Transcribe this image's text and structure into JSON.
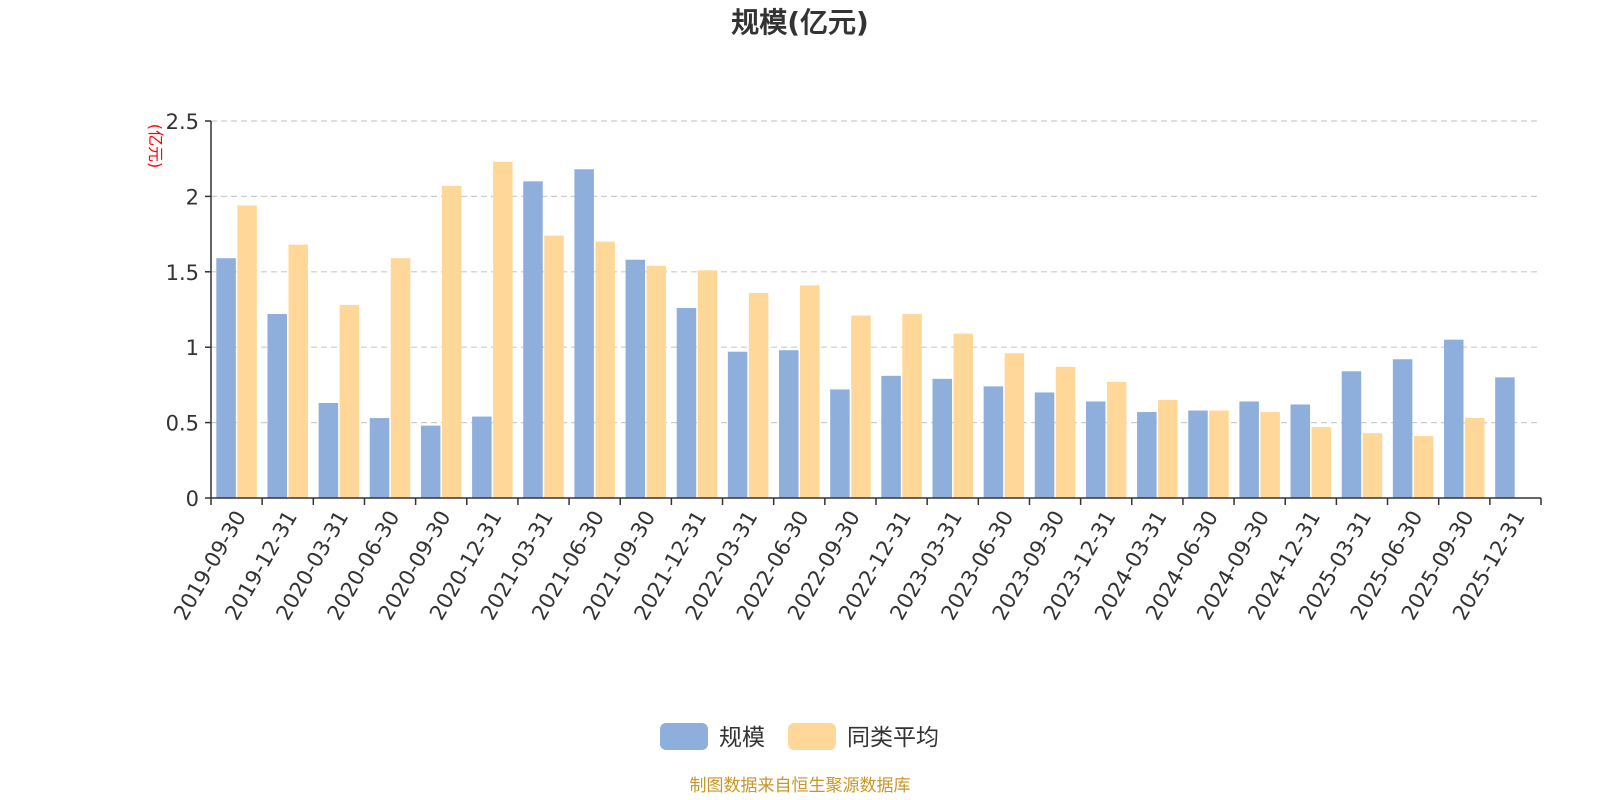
{
  "chart_data": {
    "type": "bar",
    "title": "规模(亿元)",
    "ylabel": "(亿元)",
    "ylim": [
      0,
      2.5
    ],
    "yticks": [
      "0",
      "0.5",
      "1",
      "1.5",
      "2",
      "2.5"
    ],
    "grid": true,
    "legend_position": "bottom",
    "categories": [
      "2019-09-30",
      "2019-12-31",
      "2020-03-31",
      "2020-06-30",
      "2020-09-30",
      "2020-12-31",
      "2021-03-31",
      "2021-06-30",
      "2021-09-30",
      "2021-12-31",
      "2022-03-31",
      "2022-06-30",
      "2022-09-30",
      "2022-12-31",
      "2023-03-31",
      "2023-06-30",
      "2023-09-30",
      "2023-12-31",
      "2024-03-31",
      "2024-06-30",
      "2024-09-30",
      "2024-12-31",
      "2025-03-31",
      "2025-06-30",
      "2025-09-30",
      "2025-12-31"
    ],
    "series": [
      {
        "name": "规模",
        "color": "#8eaedc",
        "values": [
          1.59,
          1.22,
          0.63,
          0.53,
          0.48,
          0.54,
          2.1,
          2.18,
          1.58,
          1.26,
          0.97,
          0.98,
          0.72,
          0.81,
          0.79,
          0.74,
          0.7,
          0.64,
          0.57,
          0.58,
          0.64,
          0.62,
          0.84,
          0.92,
          1.05,
          0.8
        ]
      },
      {
        "name": "同类平均",
        "color": "#ffd899",
        "values": [
          1.94,
          1.68,
          1.28,
          1.59,
          2.07,
          2.23,
          1.74,
          1.7,
          1.54,
          1.51,
          1.36,
          1.41,
          1.21,
          1.22,
          1.09,
          0.96,
          0.87,
          0.77,
          0.65,
          0.58,
          0.57,
          0.47,
          0.43,
          0.41,
          0.53,
          null
        ]
      }
    ]
  },
  "source_note": "制图数据来自恒生聚源数据库"
}
